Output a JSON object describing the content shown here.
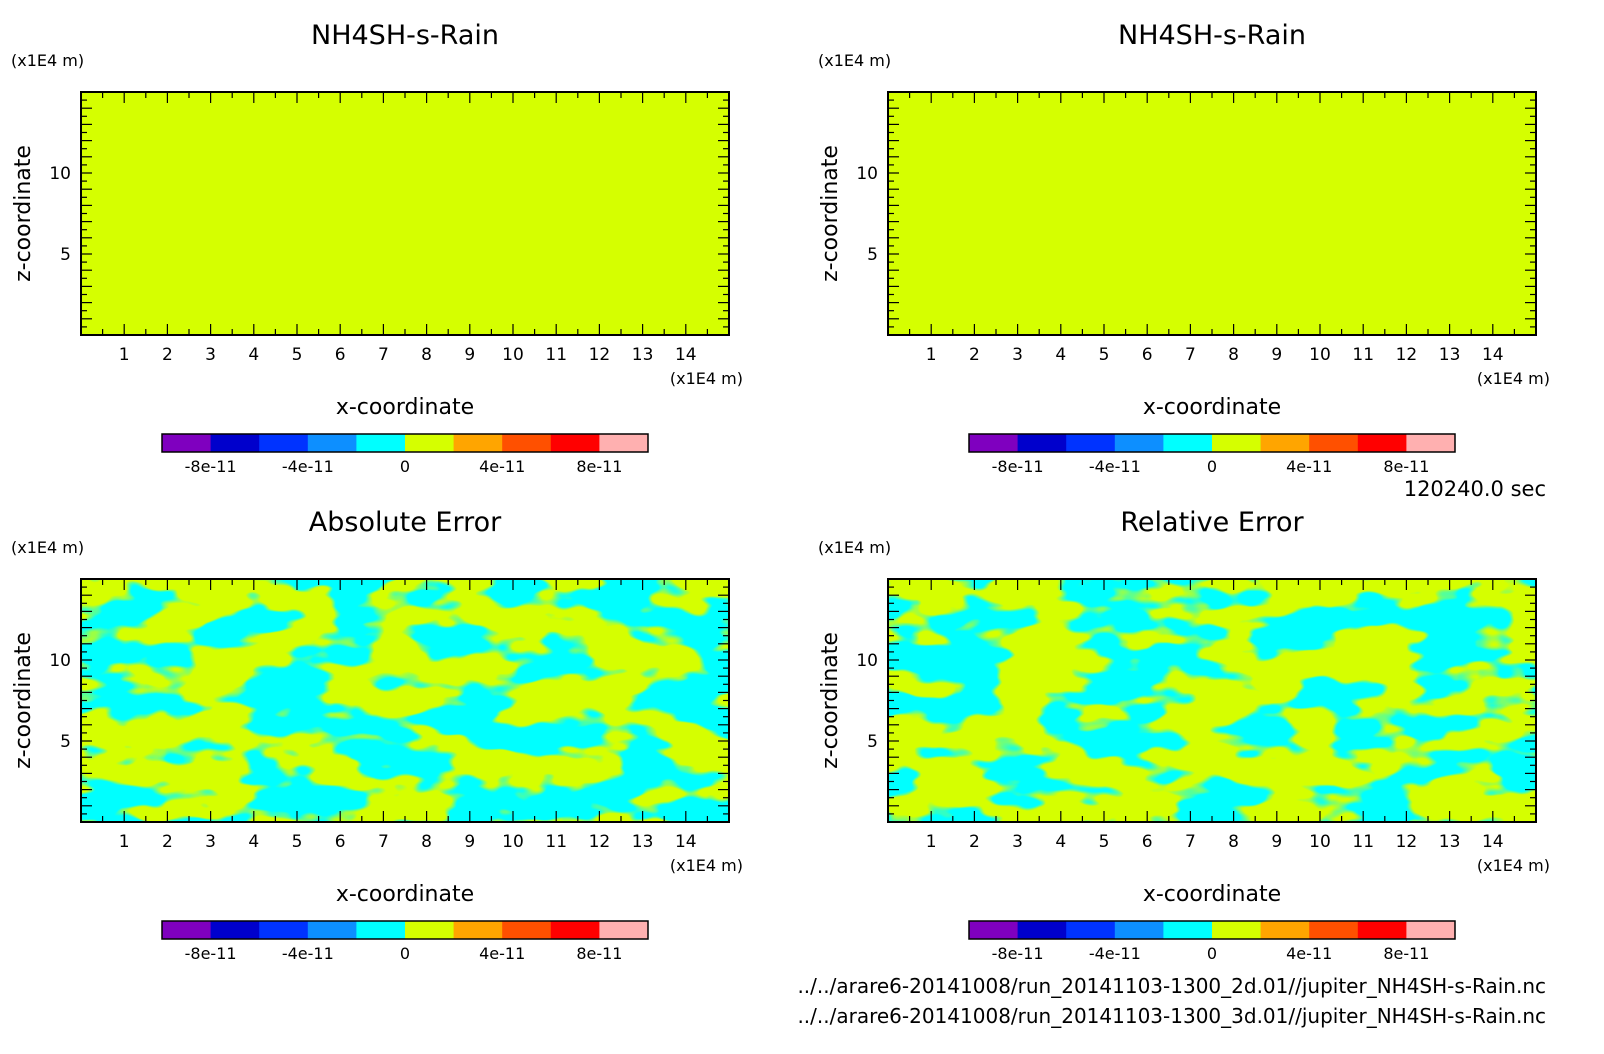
{
  "figure": {
    "time_label": "120240.0 sec",
    "footer_lines": [
      "../../arare6-20141008/run_20141103-1300_2d.01//jupiter_NH4SH-s-Rain.nc",
      "../../arare6-20141008/run_20141103-1300_3d.01//jupiter_NH4SH-s-Rain.nc"
    ]
  },
  "colorbar": {
    "colors": [
      "#7f00bf",
      "#0000cc",
      "#0033ff",
      "#0d8fff",
      "#00ffff",
      "#d5ff00",
      "#ffa500",
      "#ff5000",
      "#ff0000",
      "#ffb0b0"
    ],
    "tick_labels": [
      "-8e-11",
      "-4e-11",
      "0",
      "4e-11",
      "8e-11"
    ],
    "tick_values": [
      -8e-11,
      -4e-11,
      0,
      4e-11,
      8e-11
    ],
    "range": [
      -1e-10,
      1e-10
    ]
  },
  "chart_data": [
    {
      "type": "heatmap",
      "title": "NH4SH-s-Rain",
      "xlabel": "x-coordinate",
      "ylabel": "z-coordinate",
      "x_unit": "(x1E4 m)",
      "y_unit": "(x1E4 m)",
      "xlim": [
        0,
        15
      ],
      "ylim": [
        0,
        15
      ],
      "x_ticks": [
        "1",
        "2",
        "3",
        "4",
        "5",
        "6",
        "7",
        "8",
        "9",
        "10",
        "11",
        "12",
        "13",
        "14"
      ],
      "y_ticks": [
        "5",
        "10"
      ],
      "field": "uniform",
      "value": 0,
      "fill_color": "#d5ff00"
    },
    {
      "type": "heatmap",
      "title": "NH4SH-s-Rain",
      "xlabel": "x-coordinate",
      "ylabel": "z-coordinate",
      "x_unit": "(x1E4 m)",
      "y_unit": "(x1E4 m)",
      "xlim": [
        0,
        15
      ],
      "ylim": [
        0,
        15
      ],
      "x_ticks": [
        "1",
        "2",
        "3",
        "4",
        "5",
        "6",
        "7",
        "8",
        "9",
        "10",
        "11",
        "12",
        "13",
        "14"
      ],
      "y_ticks": [
        "5",
        "10"
      ],
      "field": "uniform",
      "value": 0,
      "fill_color": "#d5ff00"
    },
    {
      "type": "heatmap",
      "title": "Absolute Error",
      "xlabel": "x-coordinate",
      "ylabel": "z-coordinate",
      "x_unit": "(x1E4 m)",
      "y_unit": "(x1E4 m)",
      "xlim": [
        0,
        15
      ],
      "ylim": [
        0,
        15
      ],
      "x_ticks": [
        "1",
        "2",
        "3",
        "4",
        "5",
        "6",
        "7",
        "8",
        "9",
        "10",
        "11",
        "12",
        "13",
        "14"
      ],
      "y_ticks": [
        "5",
        "10"
      ],
      "field": "noise",
      "colors_present": [
        "#d5ff00",
        "#00ffff"
      ]
    },
    {
      "type": "heatmap",
      "title": "Relative Error",
      "xlabel": "x-coordinate",
      "ylabel": "z-coordinate",
      "x_unit": "(x1E4 m)",
      "y_unit": "(x1E4 m)",
      "xlim": [
        0,
        15
      ],
      "ylim": [
        0,
        15
      ],
      "x_ticks": [
        "1",
        "2",
        "3",
        "4",
        "5",
        "6",
        "7",
        "8",
        "9",
        "10",
        "11",
        "12",
        "13",
        "14"
      ],
      "y_ticks": [
        "5",
        "10"
      ],
      "field": "noise",
      "colors_present": [
        "#d5ff00",
        "#00ffff"
      ]
    }
  ]
}
